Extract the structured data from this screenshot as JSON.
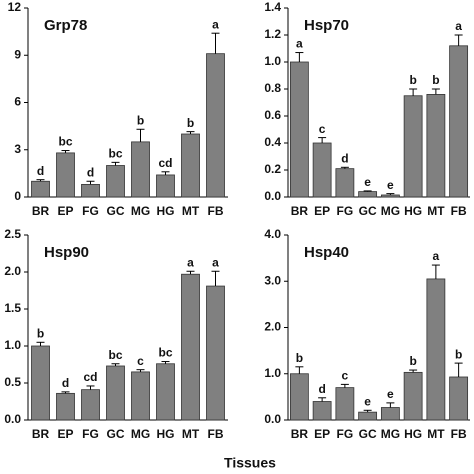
{
  "chart_data": [
    {
      "type": "bar",
      "title": "Grp78",
      "categories": [
        "BR",
        "EP",
        "FG",
        "GC",
        "MG",
        "HG",
        "MT",
        "FB"
      ],
      "values": [
        1.0,
        2.8,
        0.8,
        2.0,
        3.5,
        1.4,
        4.0,
        9.1
      ],
      "errors": [
        0.1,
        0.15,
        0.2,
        0.2,
        0.8,
        0.2,
        0.15,
        1.3
      ],
      "annotations": [
        "d",
        "bc",
        "d",
        "bc",
        "b",
        "cd",
        "b",
        "a"
      ],
      "color": "#808080",
      "ylim": [
        0,
        12
      ],
      "yticks": [
        0,
        3,
        6,
        9,
        12
      ]
    },
    {
      "type": "bar",
      "title": "Hsp70",
      "categories": [
        "BR",
        "EP",
        "FG",
        "GC",
        "MG",
        "HG",
        "MT",
        "FB"
      ],
      "values": [
        1.0,
        0.4,
        0.21,
        0.04,
        0.015,
        0.75,
        0.76,
        1.12
      ],
      "errors": [
        0.07,
        0.04,
        0.01,
        0.005,
        0.01,
        0.05,
        0.04,
        0.08
      ],
      "annotations": [
        "a",
        "c",
        "d",
        "e",
        "e",
        "b",
        "b",
        "a"
      ],
      "color": "#808080",
      "ylim": [
        0,
        1.4
      ],
      "yticks": [
        {
          "value": 0,
          "label": "0.0"
        },
        0.2,
        0.4,
        0.6,
        0.8,
        {
          "value": 1,
          "label": "1.0"
        },
        1.2,
        1.4
      ]
    },
    {
      "type": "bar",
      "title": "Hsp90",
      "categories": [
        "BR",
        "EP",
        "FG",
        "GC",
        "MG",
        "HG",
        "MT",
        "FB"
      ],
      "values": [
        1.0,
        0.36,
        0.41,
        0.73,
        0.65,
        0.76,
        1.97,
        1.81
      ],
      "errors": [
        0.05,
        0.02,
        0.05,
        0.03,
        0.03,
        0.03,
        0.04,
        0.2
      ],
      "annotations": [
        "b",
        "d",
        "cd",
        "bc",
        "c",
        "bc",
        "a",
        "a"
      ],
      "color": "#808080",
      "ylim": [
        0,
        2.5
      ],
      "yticks": [
        {
          "value": 0,
          "label": "0.0"
        },
        0.5,
        {
          "value": 1,
          "label": "1.0"
        },
        1.5,
        {
          "value": 2,
          "label": "2.0"
        },
        2.5
      ]
    },
    {
      "type": "bar",
      "title": "Hsp40",
      "categories": [
        "BR",
        "EP",
        "FG",
        "GC",
        "MG",
        "HG",
        "MT",
        "FB"
      ],
      "values": [
        1.0,
        0.4,
        0.7,
        0.17,
        0.27,
        1.03,
        3.05,
        0.93
      ],
      "errors": [
        0.15,
        0.08,
        0.07,
        0.04,
        0.1,
        0.05,
        0.3,
        0.3
      ],
      "annotations": [
        "b",
        "d",
        "c",
        "e",
        "e",
        "b",
        "a",
        "b"
      ],
      "color": "#808080",
      "ylim": [
        0,
        4
      ],
      "yticks": [
        {
          "value": 0,
          "label": "0.0"
        },
        {
          "value": 1,
          "label": "1.0"
        },
        {
          "value": 2,
          "label": "2.0"
        },
        {
          "value": 3,
          "label": "3.0"
        },
        {
          "value": 4,
          "label": "4.0"
        }
      ]
    }
  ],
  "shared_xlabel": "Tissues"
}
